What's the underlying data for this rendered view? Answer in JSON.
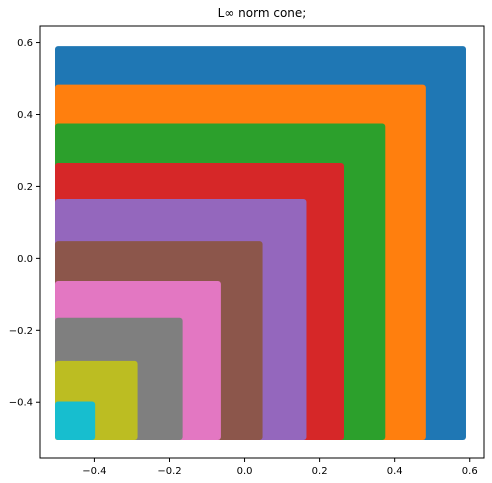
{
  "chart_data": {
    "type": "scatter",
    "title": "L∞ norm cone;",
    "xlabel": "",
    "ylabel": "",
    "xlim": [
      -0.545,
      0.638
    ],
    "ylim": [
      -0.555,
      0.646
    ],
    "xticks": [
      {
        "value": -0.4,
        "label": "−0.4"
      },
      {
        "value": -0.2,
        "label": "−0.2"
      },
      {
        "value": 0.0,
        "label": "0.0"
      },
      {
        "value": 0.2,
        "label": "0.2"
      },
      {
        "value": 0.4,
        "label": "0.4"
      },
      {
        "value": 0.6,
        "label": "0.6"
      }
    ],
    "yticks": [
      {
        "value": -0.4,
        "label": "−0.4"
      },
      {
        "value": -0.2,
        "label": "−0.2"
      },
      {
        "value": 0.0,
        "label": "0.0"
      },
      {
        "value": 0.2,
        "label": "0.2"
      },
      {
        "value": 0.4,
        "label": "0.4"
      },
      {
        "value": 0.6,
        "label": "0.6"
      }
    ],
    "grid": false,
    "legend": "none",
    "origin": [
      -0.505,
      -0.505
    ],
    "series": [
      {
        "color": "#1f77b4",
        "upper": 0.59
      },
      {
        "color": "#ff7f0e",
        "upper": 0.483
      },
      {
        "color": "#2ca02c",
        "upper": 0.375
      },
      {
        "color": "#d62728",
        "upper": 0.265
      },
      {
        "color": "#9467bd",
        "upper": 0.165
      },
      {
        "color": "#8c564b",
        "upper": 0.048
      },
      {
        "color": "#e377c2",
        "upper": -0.063
      },
      {
        "color": "#7f7f7f",
        "upper": -0.165
      },
      {
        "color": "#bcbd22",
        "upper": -0.285
      },
      {
        "color": "#17becf",
        "upper": -0.398
      }
    ]
  }
}
